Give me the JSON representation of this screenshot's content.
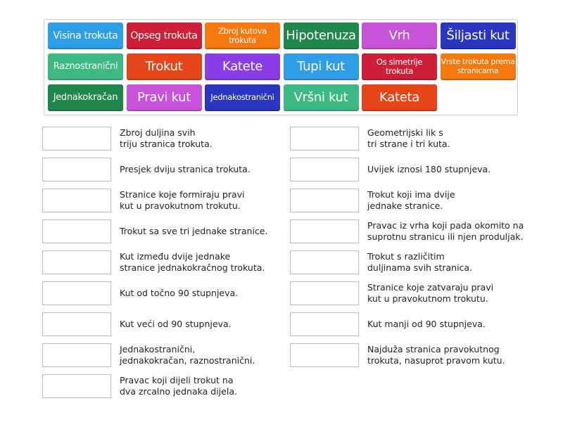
{
  "tiles": [
    {
      "label": "Visina trokuta",
      "color": "#2e9fe6",
      "size": 14
    },
    {
      "label": "Opseg trokuta",
      "color": "#cf1f38",
      "size": 14
    },
    {
      "label": "Zbroj kutova trokuta",
      "color": "#f5790e",
      "size": 11.5
    },
    {
      "label": "Hipotenuza",
      "color": "#1f874b",
      "size": 18
    },
    {
      "label": "Vrh",
      "color": "#c653d8",
      "size": 18
    },
    {
      "label": "Šiljasti kut",
      "color": "#2a35c0",
      "size": 18
    },
    {
      "label": "Raznostranični",
      "color": "#3cba82",
      "size": 13
    },
    {
      "label": "Trokut",
      "color": "#e6451a",
      "size": 18
    },
    {
      "label": "Katete",
      "color": "#8a3ce6",
      "size": 18
    },
    {
      "label": "Tupi kut",
      "color": "#2e9fe6",
      "size": 18
    },
    {
      "label": "Os simetrije trokuta",
      "color": "#cf1f38",
      "size": 11.5
    },
    {
      "label": "Vrste trokuta prema stranicama",
      "color": "#f5790e",
      "size": 11
    },
    {
      "label": "Jednakokračan",
      "color": "#1f874b",
      "size": 13
    },
    {
      "label": "Pravi kut",
      "color": "#c653d8",
      "size": 18
    },
    {
      "label": "Jednakostranični",
      "color": "#2a35c0",
      "size": 11.5
    },
    {
      "label": "Vršni kut",
      "color": "#3cba82",
      "size": 18
    },
    {
      "label": "Kateta",
      "color": "#e6451a",
      "size": 18
    }
  ],
  "left": [
    "Zbroj duljina svih\ntriju stranica trokuta.",
    "Presjek dviju stranica trokuta.",
    "Stranice koje formiraju pravi\nkut u pravokutnom trokutu.",
    "Trokut sa sve tri jednake stranice.",
    "Kut između dvije jednake\nstranice jednakokračnog trokuta.",
    "Kut od točno 90 stupnjeva.",
    "Kut veći od 90 stupnjeva.",
    "Jednakostranični,\njednakokračan, raznostranični.",
    "Pravac koji dijeli trokut na\ndva zrcalno jednaka dijela."
  ],
  "right": [
    "Geometrijski lik s\ntri strane i tri kuta.",
    "Uvijek iznosi 180 stupnjeva.",
    "Trokut koji ima dvije\njednake stranice.",
    "Pravac iz vrha koji pada okomito na\nsuprotnu stranicu ili njen produljak.",
    "Trokut s različitim\nduljinama svih stranica.",
    "Stranice koje zatvaraju pravi\nkut u pravokutnom trokutu.",
    "Kut manji od 90 stupnjeva.",
    "Najduža stranica pravokutnog\ntrokuta, nasuprot pravom kutu."
  ]
}
